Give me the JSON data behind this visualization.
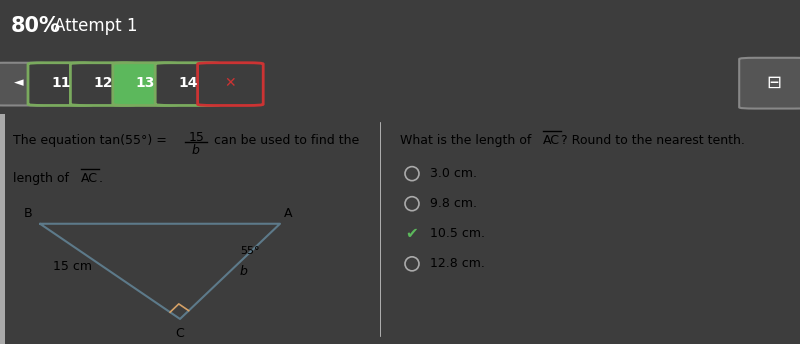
{
  "header_color": "#20aacc",
  "header_bold": "80%",
  "nav_buttons": [
    "11",
    "12",
    "13",
    "14"
  ],
  "nav_active_color": "#5cb85c",
  "nav_x_color": "#cc3333",
  "content_bg": "#ffffff",
  "options": [
    "3.0 cm.",
    "9.8 cm.",
    "10.5 cm.",
    "12.8 cm."
  ],
  "correct_option": 2,
  "triangle_color": "#5d7a8a",
  "right_angle_color": "#d4a066"
}
